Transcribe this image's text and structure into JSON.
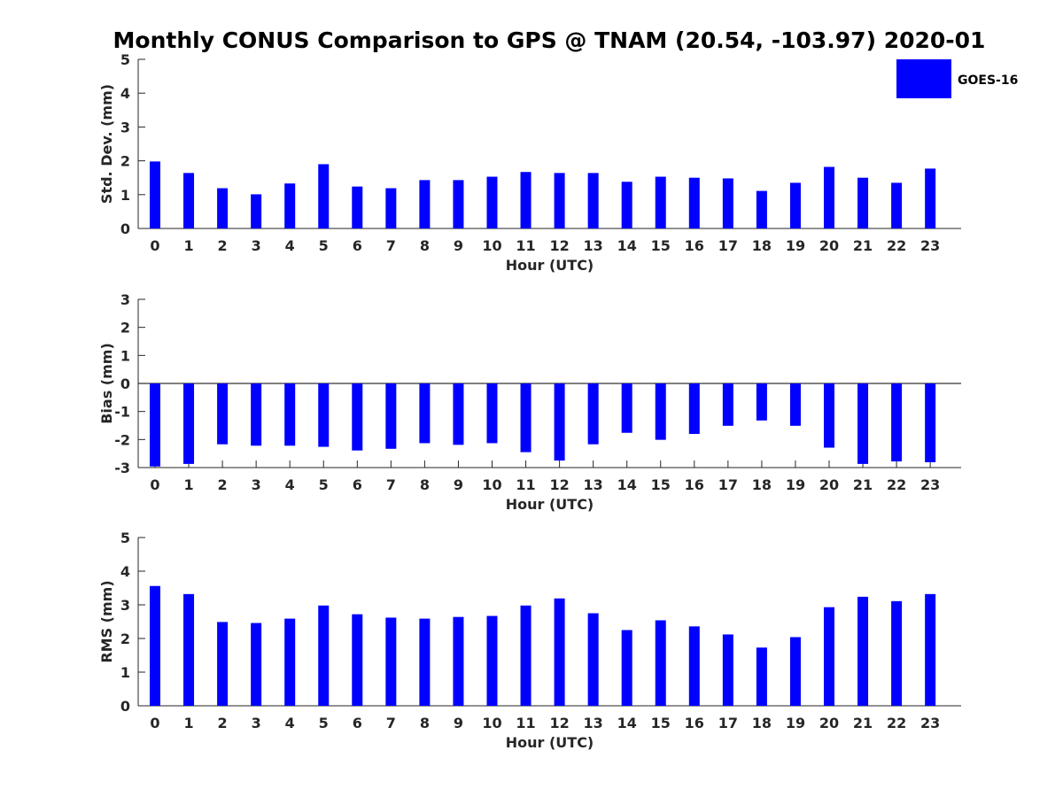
{
  "chart_data": [
    {
      "type": "bar",
      "title": "Monthly CONUS Comparison to GPS @ TNAM (20.54, -103.97) 2020-01",
      "xlabel": "Hour (UTC)",
      "ylabel": "Std. Dev. (mm)",
      "ylim": [
        0,
        5
      ],
      "yticks": [
        0,
        1,
        2,
        3,
        4,
        5
      ],
      "categories": [
        "0",
        "1",
        "2",
        "3",
        "4",
        "5",
        "6",
        "7",
        "8",
        "9",
        "10",
        "11",
        "12",
        "13",
        "14",
        "15",
        "16",
        "17",
        "18",
        "19",
        "20",
        "21",
        "22",
        "23"
      ],
      "series": [
        {
          "name": "GOES-16",
          "values": [
            1.98,
            1.64,
            1.19,
            1.01,
            1.33,
            1.9,
            1.24,
            1.19,
            1.43,
            1.43,
            1.53,
            1.67,
            1.64,
            1.64,
            1.38,
            1.53,
            1.5,
            1.48,
            1.11,
            1.35,
            1.82,
            1.5,
            1.35,
            1.77
          ]
        }
      ],
      "legend": "top-right",
      "grid": false
    },
    {
      "type": "bar",
      "xlabel": "Hour (UTC)",
      "ylabel": "Bias (mm)",
      "ylim": [
        -3,
        3
      ],
      "yticks": [
        -3,
        -2,
        -1,
        0,
        1,
        2,
        3
      ],
      "categories": [
        "0",
        "1",
        "2",
        "3",
        "4",
        "5",
        "6",
        "7",
        "8",
        "9",
        "10",
        "11",
        "12",
        "13",
        "14",
        "15",
        "16",
        "17",
        "18",
        "19",
        "20",
        "21",
        "22",
        "23"
      ],
      "series": [
        {
          "values": [
            -2.96,
            -2.87,
            -2.17,
            -2.22,
            -2.22,
            -2.26,
            -2.39,
            -2.33,
            -2.13,
            -2.19,
            -2.13,
            -2.45,
            -2.75,
            -2.17,
            -1.76,
            -2.01,
            -1.8,
            -1.51,
            -1.32,
            -1.51,
            -2.29,
            -2.87,
            -2.78,
            -2.81
          ]
        }
      ],
      "grid": false
    },
    {
      "type": "bar",
      "xlabel": "Hour (UTC)",
      "ylabel": "RMS (mm)",
      "ylim": [
        0,
        5
      ],
      "yticks": [
        0,
        1,
        2,
        3,
        4,
        5
      ],
      "categories": [
        "0",
        "1",
        "2",
        "3",
        "4",
        "5",
        "6",
        "7",
        "8",
        "9",
        "10",
        "11",
        "12",
        "13",
        "14",
        "15",
        "16",
        "17",
        "18",
        "19",
        "20",
        "21",
        "22",
        "23"
      ],
      "series": [
        {
          "values": [
            3.56,
            3.32,
            2.49,
            2.46,
            2.59,
            2.98,
            2.72,
            2.62,
            2.59,
            2.64,
            2.67,
            2.98,
            3.19,
            2.75,
            2.25,
            2.54,
            2.36,
            2.12,
            1.73,
            2.04,
            2.93,
            3.24,
            3.11,
            3.32
          ]
        }
      ],
      "grid": false
    }
  ],
  "legend": {
    "label": "GOES-16"
  },
  "colors": {
    "bar": "#0000ff",
    "axis": "#262626"
  }
}
